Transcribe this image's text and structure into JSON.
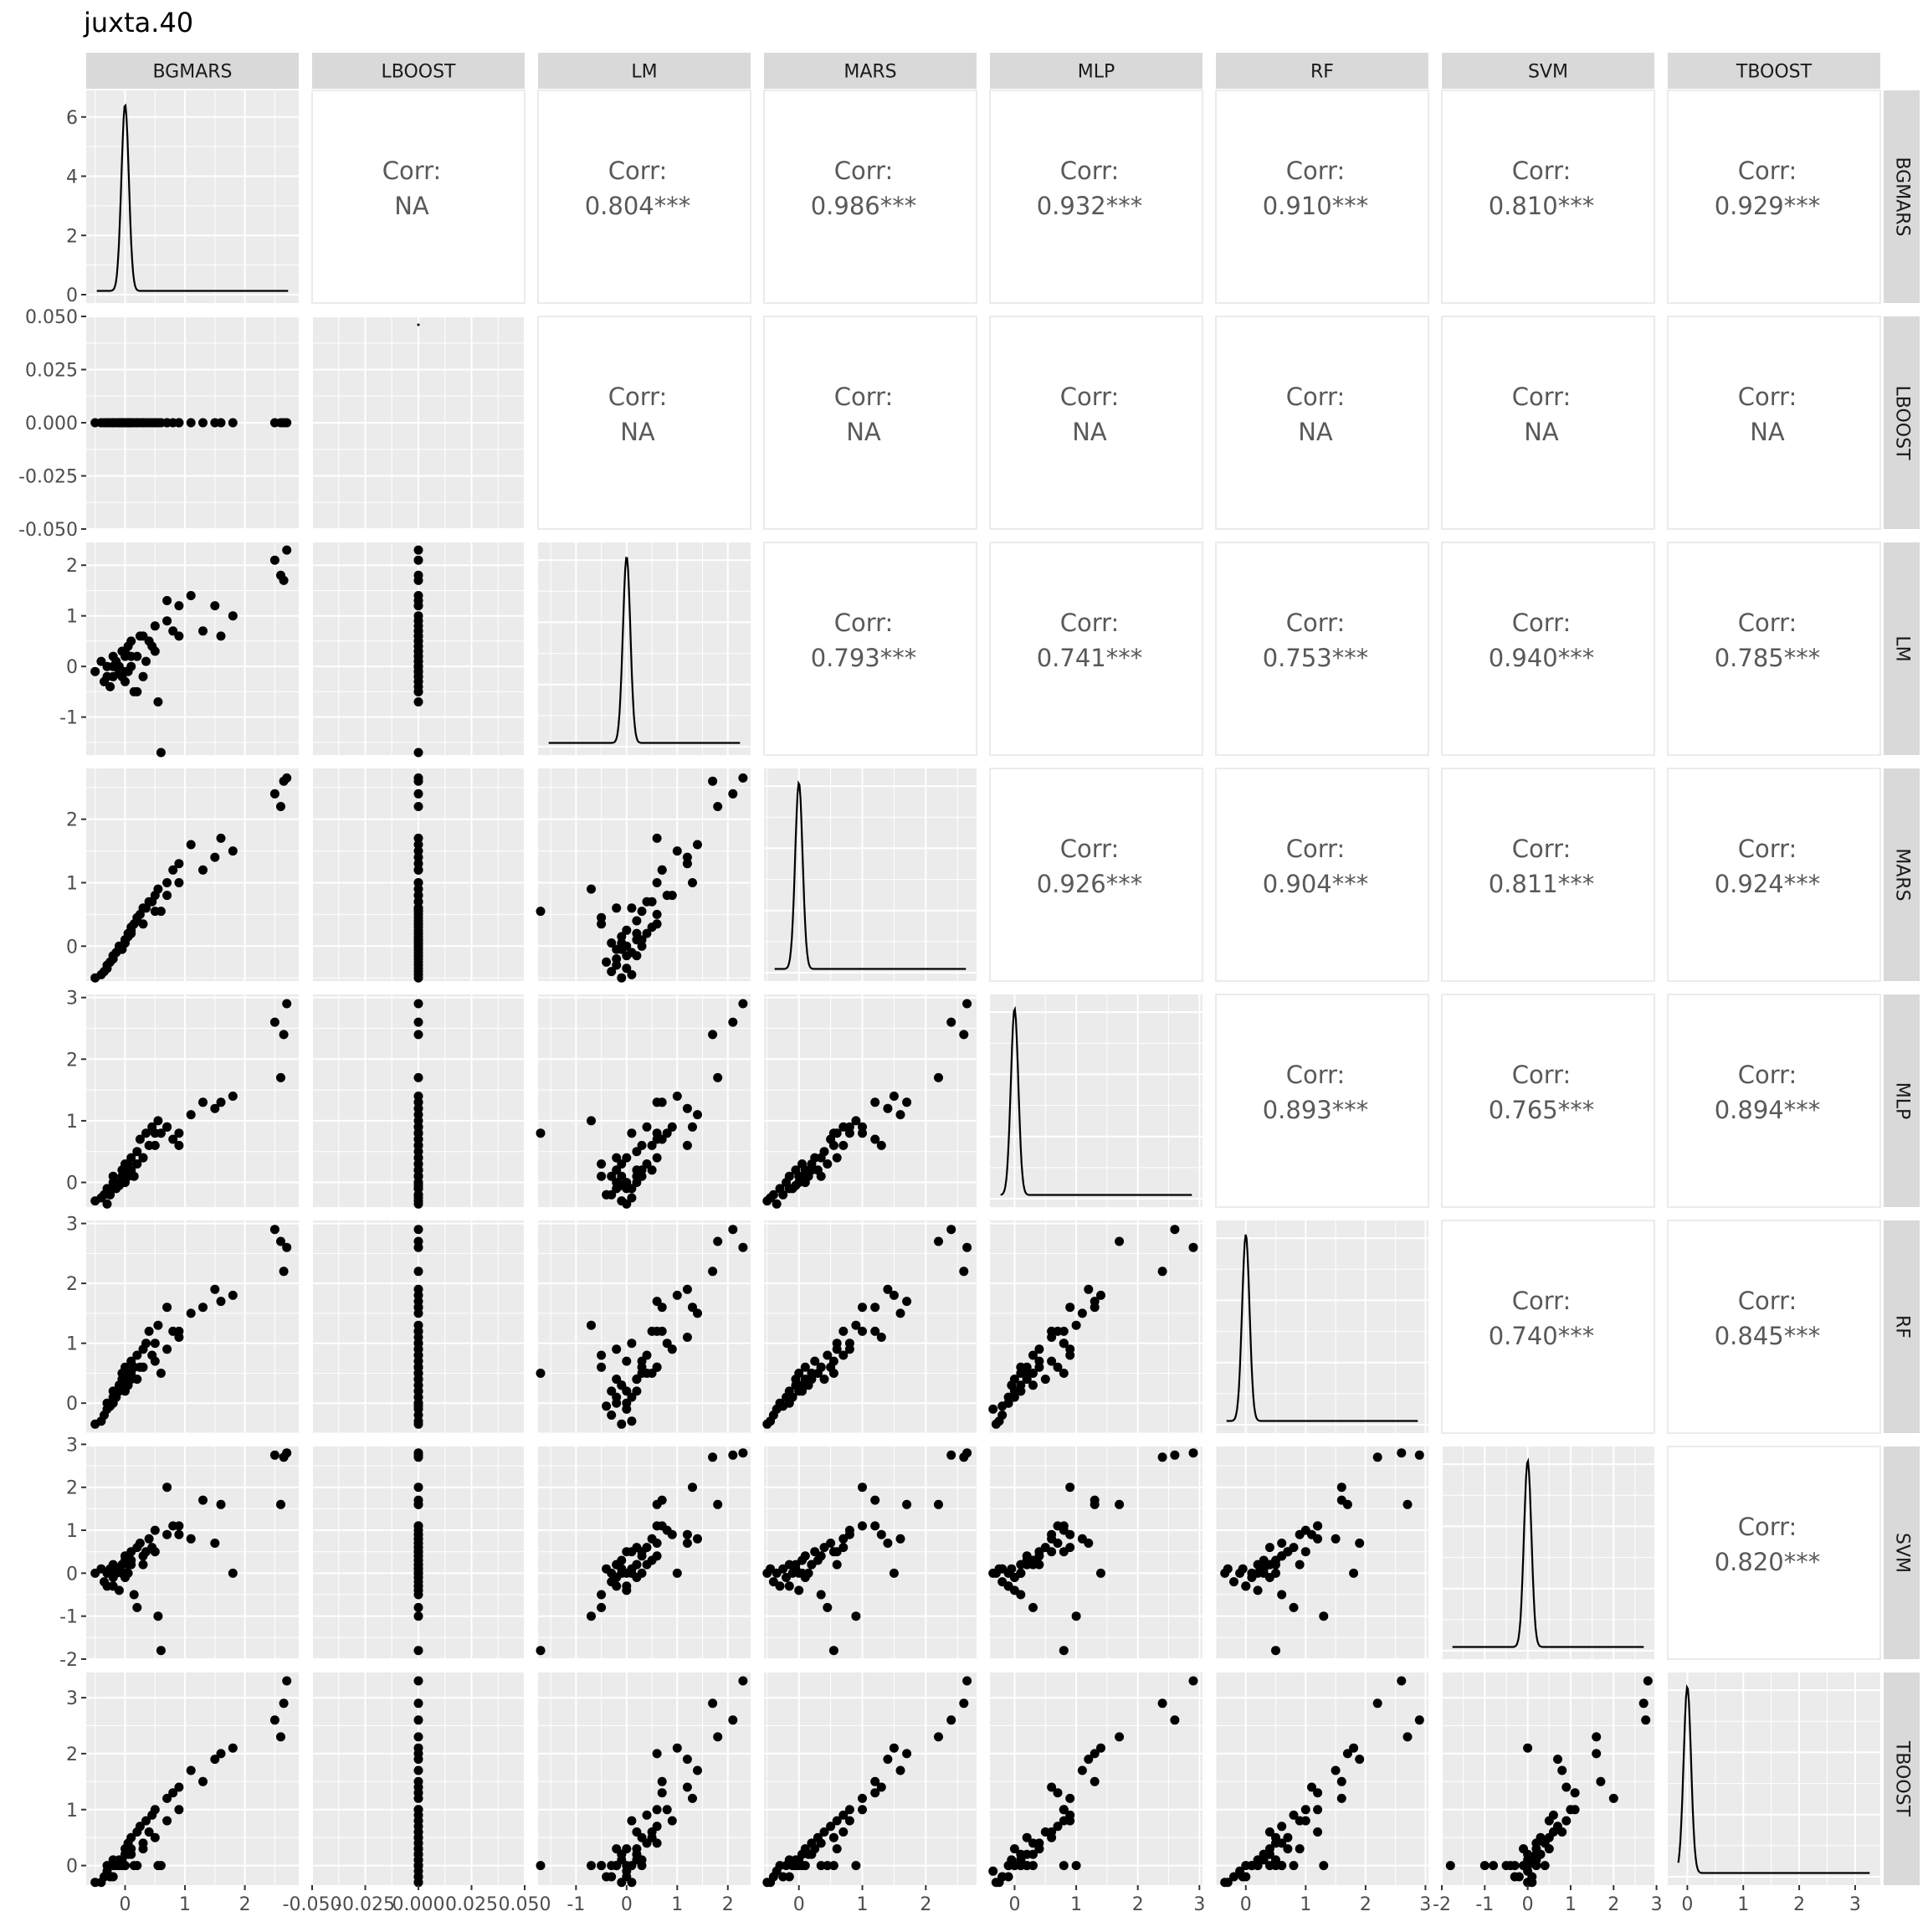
{
  "title": "juxta.40",
  "chart_data": {
    "type": "scatter-matrix",
    "title": "juxta.40",
    "variables": [
      "BGMARS",
      "LBOOST",
      "LM",
      "MARS",
      "MLP",
      "RF",
      "SVM",
      "TBOOST"
    ],
    "axes": {
      "BGMARS": {
        "range": [
          -0.65,
          2.9
        ],
        "ticks": [
          0,
          1,
          2
        ],
        "tick_labels": [
          "0",
          "1",
          "2"
        ]
      },
      "LBOOST": {
        "range": [
          -0.05,
          0.05
        ],
        "ticks": [
          -0.05,
          -0.025,
          0,
          0.025,
          0.05
        ],
        "tick_labels": [
          "-0.050",
          "-0.025",
          "0.000",
          "0.025",
          "0.050"
        ]
      },
      "LM": {
        "range": [
          -1.75,
          2.45
        ],
        "ticks": [
          -1,
          0,
          1,
          2
        ],
        "tick_labels": [
          "-1",
          "0",
          "1",
          "2"
        ]
      },
      "MARS": {
        "range": [
          -0.55,
          2.8
        ],
        "ticks": [
          0,
          1,
          2
        ],
        "tick_labels": [
          "0",
          "1",
          "2"
        ]
      },
      "MLP": {
        "range": [
          -0.4,
          3.05
        ],
        "ticks": [
          0,
          1,
          2,
          3
        ],
        "tick_labels": [
          "0",
          "1",
          "2",
          "3"
        ]
      },
      "RF": {
        "range": [
          -0.5,
          3.05
        ],
        "ticks": [
          0,
          1,
          2,
          3
        ],
        "tick_labels": [
          "0",
          "1",
          "2",
          "3"
        ]
      },
      "SVM": {
        "range": [
          -2.0,
          2.95
        ],
        "ticks": [
          -2,
          -1,
          0,
          1,
          2,
          3
        ],
        "tick_labels": [
          "-2",
          "-1",
          "0",
          "1",
          "2",
          "3"
        ]
      },
      "TBOOST": {
        "range": [
          -0.35,
          3.45
        ],
        "ticks": [
          0,
          1,
          2,
          3
        ],
        "tick_labels": [
          "0",
          "1",
          "2",
          "3"
        ]
      }
    },
    "y_axis_left": {
      "BGMARS": {
        "ticks": [
          0,
          2,
          4,
          6
        ],
        "tick_labels": [
          "0",
          "2",
          "4",
          "6"
        ]
      },
      "LBOOST": {
        "ticks": [
          -0.05,
          -0.025,
          0,
          0.025,
          0.05
        ],
        "tick_labels": [
          "-0.050",
          "-0.025",
          "0.000",
          "0.025",
          "0.050"
        ]
      },
      "LM": {
        "ticks": [
          -1,
          0,
          1,
          2
        ],
        "tick_labels": [
          "-1",
          "0",
          "1",
          "2"
        ]
      },
      "MARS": {
        "ticks": [
          0,
          1,
          2
        ],
        "tick_labels": [
          "0",
          "1",
          "2"
        ]
      },
      "MLP": {
        "ticks": [
          0,
          1,
          2,
          3
        ],
        "tick_labels": [
          "0",
          "1",
          "2",
          "3"
        ]
      },
      "RF": {
        "ticks": [
          0,
          1,
          2,
          3
        ],
        "tick_labels": [
          "0",
          "1",
          "2",
          "3"
        ]
      },
      "SVM": {
        "ticks": [
          -2,
          -1,
          0,
          1,
          2,
          3
        ],
        "tick_labels": [
          "-2",
          "-1",
          "0",
          "1",
          "2",
          "3"
        ]
      },
      "TBOOST": {
        "ticks": [
          0,
          1,
          2,
          3
        ],
        "tick_labels": [
          "0",
          "1",
          "2",
          "3"
        ]
      }
    },
    "density_peaks": {
      "BGMARS": 6.3,
      "LM": 2.35,
      "MARS": 2.7,
      "MLP": 2.95,
      "RF": 2.9,
      "SVM": 2.8,
      "TBOOST": 3.3
    },
    "density_center": {
      "BGMARS": 0.0,
      "LM": 0.0,
      "MARS": 0.0,
      "MLP": 0.0,
      "RF": 0.0,
      "SVM": 0.0,
      "TBOOST": 0.0
    },
    "correlation_label": "Corr:",
    "correlations": [
      {
        "row": "BGMARS",
        "col": "LBOOST",
        "value": "NA"
      },
      {
        "row": "BGMARS",
        "col": "LM",
        "value": "0.804***"
      },
      {
        "row": "BGMARS",
        "col": "MARS",
        "value": "0.986***"
      },
      {
        "row": "BGMARS",
        "col": "MLP",
        "value": "0.932***"
      },
      {
        "row": "BGMARS",
        "col": "RF",
        "value": "0.910***"
      },
      {
        "row": "BGMARS",
        "col": "SVM",
        "value": "0.810***"
      },
      {
        "row": "BGMARS",
        "col": "TBOOST",
        "value": "0.929***"
      },
      {
        "row": "LBOOST",
        "col": "LM",
        "value": "NA"
      },
      {
        "row": "LBOOST",
        "col": "MARS",
        "value": "NA"
      },
      {
        "row": "LBOOST",
        "col": "MLP",
        "value": "NA"
      },
      {
        "row": "LBOOST",
        "col": "RF",
        "value": "NA"
      },
      {
        "row": "LBOOST",
        "col": "SVM",
        "value": "NA"
      },
      {
        "row": "LBOOST",
        "col": "TBOOST",
        "value": "NA"
      },
      {
        "row": "LM",
        "col": "MARS",
        "value": "0.793***"
      },
      {
        "row": "LM",
        "col": "MLP",
        "value": "0.741***"
      },
      {
        "row": "LM",
        "col": "RF",
        "value": "0.753***"
      },
      {
        "row": "LM",
        "col": "SVM",
        "value": "0.940***"
      },
      {
        "row": "LM",
        "col": "TBOOST",
        "value": "0.785***"
      },
      {
        "row": "MARS",
        "col": "MLP",
        "value": "0.926***"
      },
      {
        "row": "MARS",
        "col": "RF",
        "value": "0.904***"
      },
      {
        "row": "MARS",
        "col": "SVM",
        "value": "0.811***"
      },
      {
        "row": "MARS",
        "col": "TBOOST",
        "value": "0.924***"
      },
      {
        "row": "MLP",
        "col": "RF",
        "value": "0.893***"
      },
      {
        "row": "MLP",
        "col": "SVM",
        "value": "0.765***"
      },
      {
        "row": "MLP",
        "col": "TBOOST",
        "value": "0.894***"
      },
      {
        "row": "RF",
        "col": "SVM",
        "value": "0.740***"
      },
      {
        "row": "RF",
        "col": "TBOOST",
        "value": "0.845***"
      },
      {
        "row": "SVM",
        "col": "TBOOST",
        "value": "0.820***"
      }
    ],
    "observations": {
      "BGMARS": [
        -0.5,
        -0.4,
        -0.35,
        -0.3,
        -0.3,
        -0.25,
        -0.2,
        -0.2,
        -0.15,
        -0.1,
        -0.1,
        -0.05,
        -0.05,
        0,
        0,
        0,
        0.05,
        0.05,
        0.1,
        0.1,
        0.15,
        0.2,
        0.2,
        0.25,
        0.3,
        0.35,
        0.4,
        0.45,
        0.5,
        0.55,
        0.6,
        0.7,
        0.8,
        0.9,
        1.1,
        1.3,
        1.5,
        1.6,
        1.8,
        2.5,
        2.6,
        2.65,
        2.7,
        -0.2,
        0,
        0.1,
        0.3,
        0.5,
        0.7,
        0.9
      ],
      "LBOOST": [
        0,
        0,
        0,
        0,
        0,
        0,
        0,
        0,
        0,
        0,
        0,
        0,
        0,
        0,
        0,
        0,
        0,
        0,
        0,
        0,
        0,
        0,
        0,
        0,
        0,
        0,
        0,
        0,
        0,
        0,
        0,
        0,
        0,
        0,
        0,
        0,
        0,
        0,
        0,
        0,
        0,
        0,
        0,
        0,
        0,
        0,
        0,
        0,
        0,
        0
      ],
      "LM": [
        -0.1,
        0.1,
        -0.3,
        0,
        -0.2,
        -0.4,
        -0.2,
        0.2,
        0.1,
        -0.1,
        0,
        -0.2,
        0.3,
        -0.1,
        0.2,
        0.3,
        -0.1,
        0.4,
        0,
        0.5,
        -0.5,
        0.2,
        -0.5,
        0.6,
        -0.2,
        0.1,
        0.5,
        0.4,
        0.8,
        -0.7,
        -1.7,
        1.3,
        0.7,
        1.2,
        1.4,
        0.7,
        1.2,
        0.6,
        1.0,
        2.1,
        1.8,
        1.7,
        2.3,
        0,
        -0.3,
        0.2,
        0.6,
        0.3,
        0.9,
        0.6
      ],
      "MARS": [
        -0.5,
        -0.45,
        -0.4,
        -0.35,
        -0.3,
        -0.25,
        -0.2,
        -0.15,
        -0.1,
        -0.05,
        0,
        -0.05,
        0,
        0.05,
        0.1,
        0.1,
        0.15,
        0.2,
        0.25,
        0.3,
        0.35,
        0.4,
        0.45,
        0.5,
        0.6,
        0.6,
        0.7,
        0.7,
        0.8,
        0.9,
        0.55,
        1.0,
        1.2,
        1.3,
        1.6,
        1.2,
        1.4,
        1.7,
        1.5,
        2.4,
        2.2,
        2.6,
        2.65,
        -0.15,
        0.05,
        0.2,
        0.35,
        0.55,
        0.8,
        1.0
      ],
      "MLP": [
        -0.3,
        -0.25,
        -0.2,
        -0.35,
        -0.1,
        -0.2,
        0,
        0.1,
        -0.1,
        -0.05,
        0,
        0.2,
        0.1,
        0.3,
        0,
        0.2,
        0.1,
        0.3,
        0.4,
        0.2,
        0.1,
        0.5,
        0.3,
        0.7,
        0.4,
        0.8,
        0.6,
        0.9,
        0.8,
        1.0,
        0.8,
        0.9,
        0.7,
        0.6,
        1.1,
        1.3,
        1.2,
        1.3,
        1.4,
        2.6,
        1.7,
        2.4,
        2.9,
        -0.1,
        0.1,
        0.2,
        0.4,
        0.6,
        0.9,
        0.8
      ],
      "RF": [
        -0.35,
        -0.3,
        -0.2,
        -0.1,
        0,
        -0.05,
        0.1,
        0.2,
        0.1,
        0.3,
        0.2,
        0.4,
        0.5,
        0.3,
        0.4,
        0.6,
        0.3,
        0.5,
        0.7,
        0.5,
        0.6,
        0.4,
        0.8,
        0.6,
        0.9,
        1.0,
        1.2,
        0.8,
        1.0,
        1.3,
        0.5,
        1.6,
        1.2,
        1.1,
        1.5,
        1.6,
        1.9,
        1.7,
        1.8,
        2.9,
        2.7,
        2.2,
        2.6,
        0,
        0.2,
        0.4,
        0.6,
        0.7,
        0.9,
        1.2
      ],
      "SVM": [
        0,
        0.1,
        -0.2,
        0,
        -0.3,
        0.1,
        -0.1,
        0.2,
        0,
        0.1,
        -0.4,
        0.2,
        0,
        0.3,
        -0.1,
        0.4,
        0,
        0.2,
        0.5,
        0.3,
        -0.5,
        0.6,
        -0.8,
        0.7,
        0.2,
        0.5,
        0.8,
        0.6,
        1.0,
        -1.0,
        -1.8,
        2.0,
        1.1,
        0.9,
        0.8,
        1.7,
        0.7,
        1.6,
        0,
        2.75,
        1.6,
        2.7,
        2.8,
        -0.3,
        0,
        0.2,
        0.4,
        0.5,
        0.9,
        1.1
      ],
      "TBOOST": [
        -0.3,
        -0.3,
        -0.2,
        -0.1,
        0,
        -0.2,
        0,
        0.1,
        0,
        0.1,
        0,
        0,
        0.1,
        0.2,
        0.3,
        0,
        0.2,
        0.4,
        0.3,
        0.5,
        0,
        0.6,
        0,
        0.7,
        0.3,
        0.8,
        0.6,
        0.9,
        1.0,
        0,
        0,
        1.2,
        1.3,
        1.4,
        1.7,
        1.5,
        1.9,
        2.0,
        2.1,
        2.6,
        2.3,
        2.9,
        3.3,
        -0.2,
        0,
        0.2,
        0.4,
        0.5,
        0.8,
        1.0
      ]
    }
  }
}
